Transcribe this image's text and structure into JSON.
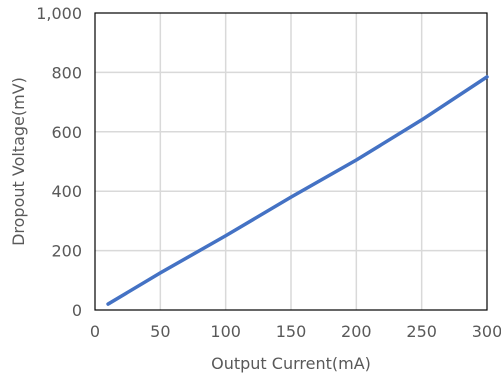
{
  "chart_data": {
    "type": "line",
    "title": "",
    "xlabel": "Output Current(mA)",
    "ylabel": "Dropout Voltage(mV)",
    "xlim": [
      0,
      300
    ],
    "ylim": [
      0,
      1000
    ],
    "xticks": [
      0,
      50,
      100,
      150,
      200,
      250,
      300
    ],
    "yticks": [
      0,
      200,
      400,
      600,
      800,
      1000
    ],
    "xtick_labels": [
      "0",
      "50",
      "100",
      "150",
      "200",
      "250",
      "300"
    ],
    "ytick_labels": [
      "0",
      "200",
      "400",
      "600",
      "800",
      "1,000"
    ],
    "grid": true,
    "legend": "none",
    "series": [
      {
        "color": "#4472c4",
        "x": [
          10,
          50,
          100,
          150,
          200,
          250,
          300
        ],
        "y": [
          20,
          125,
          250,
          380,
          505,
          640,
          785
        ]
      }
    ]
  }
}
